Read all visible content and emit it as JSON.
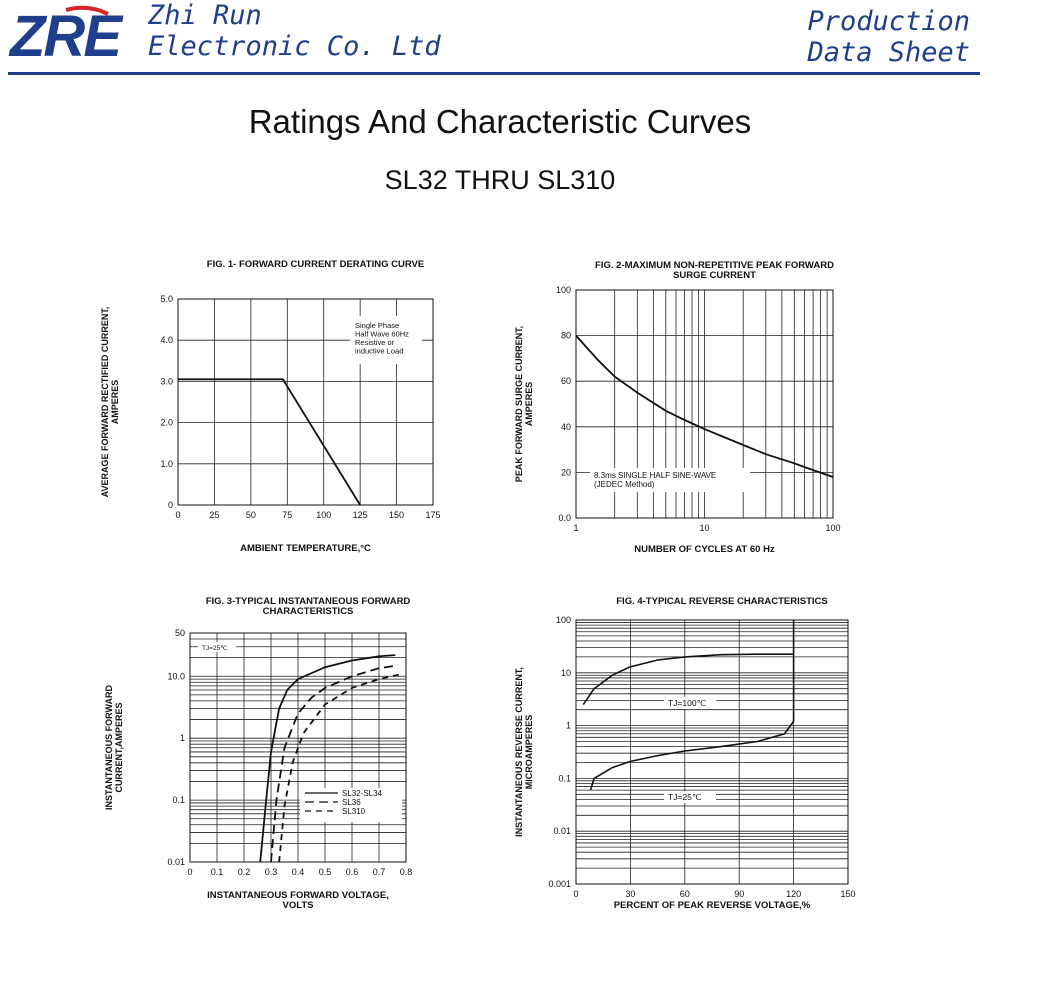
{
  "header": {
    "logo_text": "ZRE",
    "company_line1": "Zhi Run",
    "company_line2": "Electronic Co. Ltd",
    "doc_line1": "Production",
    "doc_line2": "Data Sheet",
    "brand_color": "#1f3f8a",
    "logo_accent": "#d4232a"
  },
  "page": {
    "title": "Ratings And  Characteristic Curves",
    "subtitle": "SL32 THRU SL310"
  },
  "chart_data": [
    {
      "id": "fig1",
      "type": "line",
      "title": "FIG. 1- FORWARD CURRENT DERATING CURVE",
      "ylabel": [
        "AVERAGE FORWARD RECTIFIED CURRENT,",
        "AMPERES"
      ],
      "xlabel": "AMBIENT TEMPERATURE,°C",
      "xlim": [
        0,
        175
      ],
      "ylim": [
        0,
        5.0
      ],
      "xticks": [
        0,
        25,
        50,
        75,
        100,
        125,
        150,
        175
      ],
      "xtick_labels": [
        "0",
        "25",
        "50",
        "75",
        "100",
        "125",
        "150",
        "175"
      ],
      "yticks": [
        0,
        1,
        2,
        3,
        4,
        5
      ],
      "ytick_labels": [
        "0",
        "1.0",
        "2.0",
        "3.0",
        "4.0",
        "5.0"
      ],
      "annotation": [
        "Single Phase",
        "Half Wave 60Hz",
        "Resistive or",
        "inductive Load"
      ],
      "series": [
        {
          "x": [
            0,
            72,
            125
          ],
          "y": [
            3.05,
            3.05,
            0
          ]
        }
      ]
    },
    {
      "id": "fig2",
      "type": "line",
      "title": [
        "FIG. 2-MAXIMUM NON-REPETITIVE PEAK FORWARD",
        "SURGE CURRENT"
      ],
      "ylabel": [
        "PEAK  FORWARD SURGE CURRENT,",
        "AMPERES"
      ],
      "xlabel": "NUMBER OF CYCLES AT 60 Hz",
      "xscale": "log",
      "xlim": [
        1,
        100
      ],
      "ylim": [
        0,
        100
      ],
      "xtick_labels": [
        "1",
        "10",
        "100"
      ],
      "yticks": [
        0,
        20,
        40,
        60,
        80,
        100
      ],
      "ytick_labels": [
        "0.0",
        "20",
        "40",
        "60",
        "80",
        "100"
      ],
      "annotation": [
        "8.3ms SINGLE HALF SINE-WAVE",
        "(JEDEC Method)"
      ],
      "series": [
        {
          "x": [
            1,
            1.5,
            2,
            3,
            5,
            7,
            10,
            20,
            30,
            50,
            70,
            100
          ],
          "y": [
            80,
            69,
            62,
            55,
            47,
            43,
            39,
            32,
            28,
            24,
            21,
            18
          ]
        }
      ]
    },
    {
      "id": "fig3",
      "type": "line",
      "title": [
        "FIG. 3-TYPICAL INSTANTANEOUS FORWARD",
        "CHARACTERISTICS"
      ],
      "ylabel": [
        "INSTANTANEOUS FORWARD",
        "CURRENT,AMPERES"
      ],
      "xlabel": [
        "INSTANTANEOUS FORWARD VOLTAGE,",
        "VOLTS"
      ],
      "yscale": "log",
      "xlim": [
        0,
        0.8
      ],
      "ylim": [
        0.01,
        50
      ],
      "xticks": [
        0,
        0.1,
        0.2,
        0.3,
        0.4,
        0.5,
        0.6,
        0.7,
        0.8
      ],
      "xtick_labels": [
        "0",
        "0.1",
        "0.2",
        "0.3",
        "0.4",
        "0.5",
        "0.6",
        "0.7",
        "0.8"
      ],
      "ytick_values": [
        0.01,
        0.1,
        1,
        10,
        50
      ],
      "ytick_labels": [
        "0.01",
        "0.1",
        "1",
        "10.0",
        "50"
      ],
      "annotation": "TJ=25℃",
      "series": [
        {
          "name": "SL32-SL34",
          "x": [
            0.26,
            0.28,
            0.3,
            0.33,
            0.36,
            0.4,
            0.5,
            0.6,
            0.7,
            0.76
          ],
          "y": [
            0.01,
            0.08,
            0.6,
            3,
            6,
            9,
            14,
            18,
            21,
            22
          ]
        },
        {
          "name": "SL36",
          "x": [
            0.3,
            0.32,
            0.35,
            0.4,
            0.45,
            0.5,
            0.6,
            0.7,
            0.77
          ],
          "y": [
            0.01,
            0.1,
            0.7,
            2.5,
            4.5,
            6.5,
            10,
            13.5,
            15
          ]
        },
        {
          "name": "SL310",
          "x": [
            0.33,
            0.35,
            0.38,
            0.42,
            0.5,
            0.6,
            0.7,
            0.79
          ],
          "y": [
            0.01,
            0.08,
            0.4,
            1.2,
            3.5,
            6.5,
            9,
            11
          ]
        }
      ]
    },
    {
      "id": "fig4",
      "type": "line",
      "title": "FIG. 4-TYPICAL REVERSE CHARACTERISTICS",
      "ylabel": [
        "INSTANTANEOUS REVERSE CURRENT,",
        "MICROAMPERES"
      ],
      "xlabel": "PERCENT OF PEAK REVERSE VOLTAGE,%",
      "yscale": "log",
      "xlim": [
        0,
        150
      ],
      "ylim": [
        0.001,
        100
      ],
      "xticks": [
        0,
        30,
        60,
        90,
        120,
        150
      ],
      "xtick_labels": [
        "0",
        "30",
        "60",
        "90",
        "120",
        "150"
      ],
      "ytick_values": [
        0.001,
        0.01,
        0.1,
        1,
        10,
        100
      ],
      "ytick_labels": [
        "0.001",
        "0.01",
        "0.1",
        "1",
        "10",
        "100"
      ],
      "series": [
        {
          "name": "TJ=100℃",
          "x": [
            4,
            10,
            20,
            30,
            45,
            60,
            80,
            100,
            120
          ],
          "y": [
            2.5,
            5,
            9,
            13,
            17.5,
            20,
            22,
            22.5,
            22.5
          ]
        },
        {
          "name": "TJ=25℃",
          "x": [
            8,
            10,
            20,
            30,
            45,
            60,
            80,
            100,
            115,
            120
          ],
          "y": [
            0.06,
            0.1,
            0.16,
            0.21,
            0.27,
            0.33,
            0.4,
            0.5,
            0.7,
            1.2
          ]
        }
      ]
    }
  ]
}
